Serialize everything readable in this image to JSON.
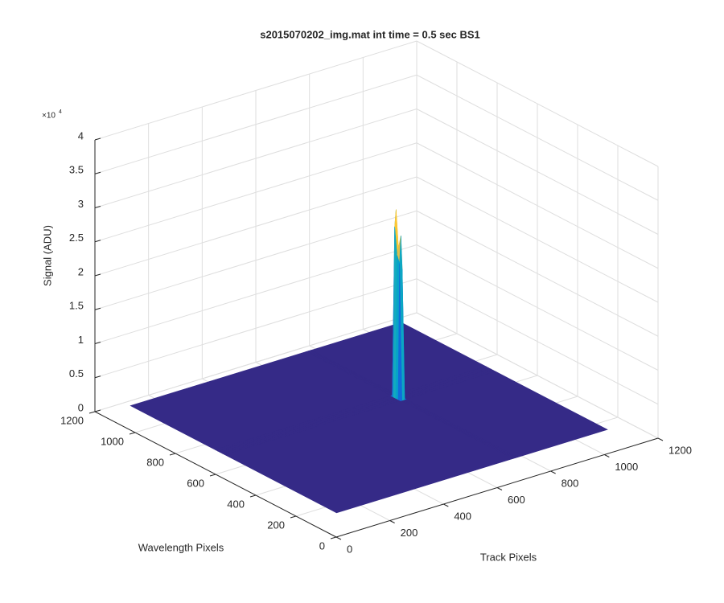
{
  "chart_data": {
    "type": "surface",
    "title": "s2015070202_img.mat int time = 0.5 sec   BS1",
    "xlabel": "Track Pixels",
    "ylabel": "Wavelength Pixels",
    "zlabel": "Signal (ADU)",
    "z_multiplier": "×10",
    "z_multiplier_exponent": "4",
    "xlim": [
      0,
      1200
    ],
    "xticks": [
      0,
      200,
      400,
      600,
      800,
      1000,
      1200
    ],
    "ylim": [
      0,
      1200
    ],
    "yticks": [
      0,
      200,
      400,
      600,
      800,
      1000,
      1200
    ],
    "zlim": [
      0,
      40000
    ],
    "zticks": [
      0,
      {
        "value": 5000,
        "label": "0.5"
      },
      {
        "value": 10000,
        "label": "1"
      },
      {
        "value": 15000,
        "label": "1.5"
      },
      {
        "value": 20000,
        "label": "2"
      },
      {
        "value": 25000,
        "label": "2.5"
      },
      {
        "value": 30000,
        "label": "3"
      },
      {
        "value": 35000,
        "label": "3.5"
      },
      {
        "value": 40000,
        "label": "4"
      }
    ],
    "grid": true,
    "colormap": [
      "#352a87",
      "#0f5cdd",
      "#1481d6",
      "#06a4ca",
      "#2eb7a4",
      "#87bf77",
      "#d1bb59",
      "#fec832",
      "#f9fb0e"
    ],
    "surface": {
      "x": [
        110,
        765,
        770,
        775,
        780,
        785,
        1120
      ],
      "y": [
        145,
        700,
        712,
        724,
        736,
        748,
        1170
      ],
      "z": [
        [
          0,
          0,
          0,
          0,
          0,
          0,
          0
        ],
        [
          0,
          0,
          0,
          0,
          0,
          0,
          0
        ],
        [
          0,
          0,
          20000,
          24000,
          19000,
          0,
          0
        ],
        [
          0,
          0,
          21000,
          22000,
          20000,
          0,
          0
        ],
        [
          0,
          0,
          25000,
          27500,
          23000,
          0,
          0
        ],
        [
          0,
          0,
          0,
          0,
          0,
          0,
          0
        ],
        [
          0,
          0,
          0,
          0,
          0,
          0,
          0
        ]
      ]
    }
  }
}
